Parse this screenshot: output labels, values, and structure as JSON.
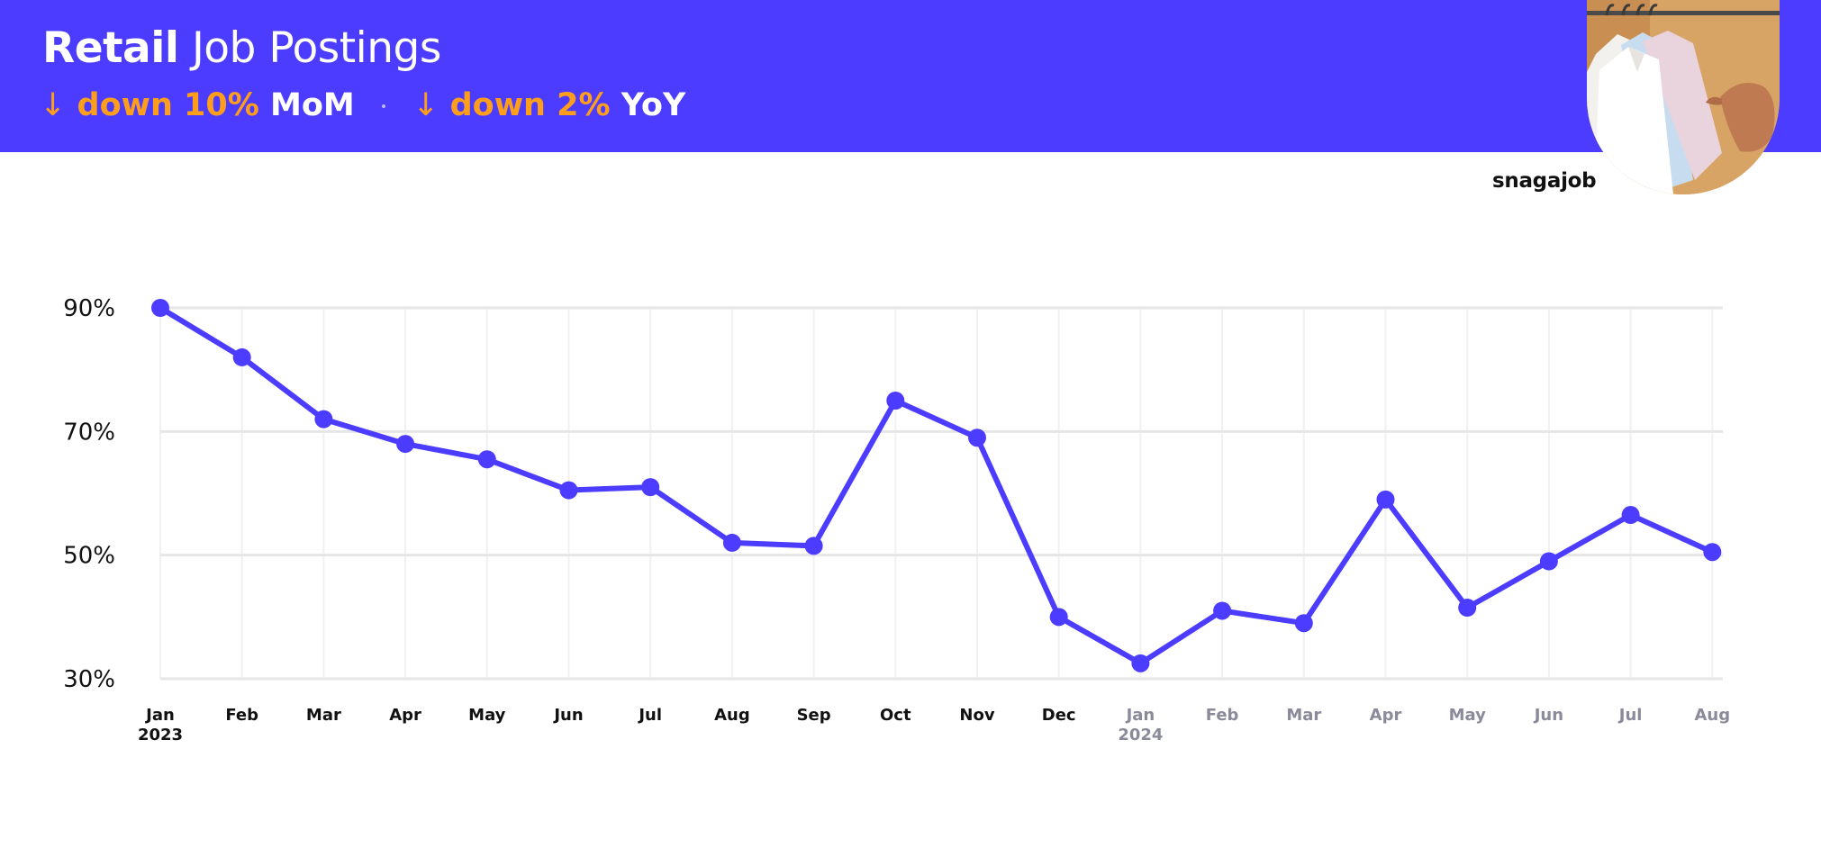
{
  "header": {
    "title_bold": "Retail",
    "title_light": "Job Postings",
    "mom_arrow": "↓",
    "mom_value": "down 10%",
    "mom_label": "MoM",
    "yoy_arrow": "↓",
    "yoy_value": "down 2%",
    "yoy_label": "YoY"
  },
  "brand": "snagajob",
  "colors": {
    "header_bg": "#4c3cff",
    "accent_orange": "#ff9e1b",
    "line": "#4c3cff",
    "grid": "#e6e6e6",
    "tick_dark": "#111111",
    "tick_muted": "#8a8a9a"
  },
  "chart_data": {
    "type": "line",
    "title": "Retail Job Postings",
    "xlabel": "",
    "ylabel": "",
    "yticks": [
      "90%",
      "70%",
      "50%",
      "30%"
    ],
    "ylim": [
      30,
      90
    ],
    "grid": true,
    "categories": [
      {
        "month": "Jan",
        "year": "2023",
        "muted": false
      },
      {
        "month": "Feb",
        "year": "",
        "muted": false
      },
      {
        "month": "Mar",
        "year": "",
        "muted": false
      },
      {
        "month": "Apr",
        "year": "",
        "muted": false
      },
      {
        "month": "May",
        "year": "",
        "muted": false
      },
      {
        "month": "Jun",
        "year": "",
        "muted": false
      },
      {
        "month": "Jul",
        "year": "",
        "muted": false
      },
      {
        "month": "Aug",
        "year": "",
        "muted": false
      },
      {
        "month": "Sep",
        "year": "",
        "muted": false
      },
      {
        "month": "Oct",
        "year": "",
        "muted": false
      },
      {
        "month": "Nov",
        "year": "",
        "muted": false
      },
      {
        "month": "Dec",
        "year": "",
        "muted": false
      },
      {
        "month": "Jan",
        "year": "2024",
        "muted": true
      },
      {
        "month": "Feb",
        "year": "",
        "muted": true
      },
      {
        "month": "Mar",
        "year": "",
        "muted": true
      },
      {
        "month": "Apr",
        "year": "",
        "muted": true
      },
      {
        "month": "May",
        "year": "",
        "muted": true
      },
      {
        "month": "Jun",
        "year": "",
        "muted": true
      },
      {
        "month": "Jul",
        "year": "",
        "muted": true
      },
      {
        "month": "Aug",
        "year": "",
        "muted": true
      }
    ],
    "series": [
      {
        "values": [
          90,
          82,
          72,
          68,
          65.5,
          60.5,
          61,
          52,
          51.5,
          75,
          69,
          40,
          32.5,
          41,
          39,
          59,
          41.5,
          49,
          56.5,
          50.5
        ]
      }
    ]
  }
}
